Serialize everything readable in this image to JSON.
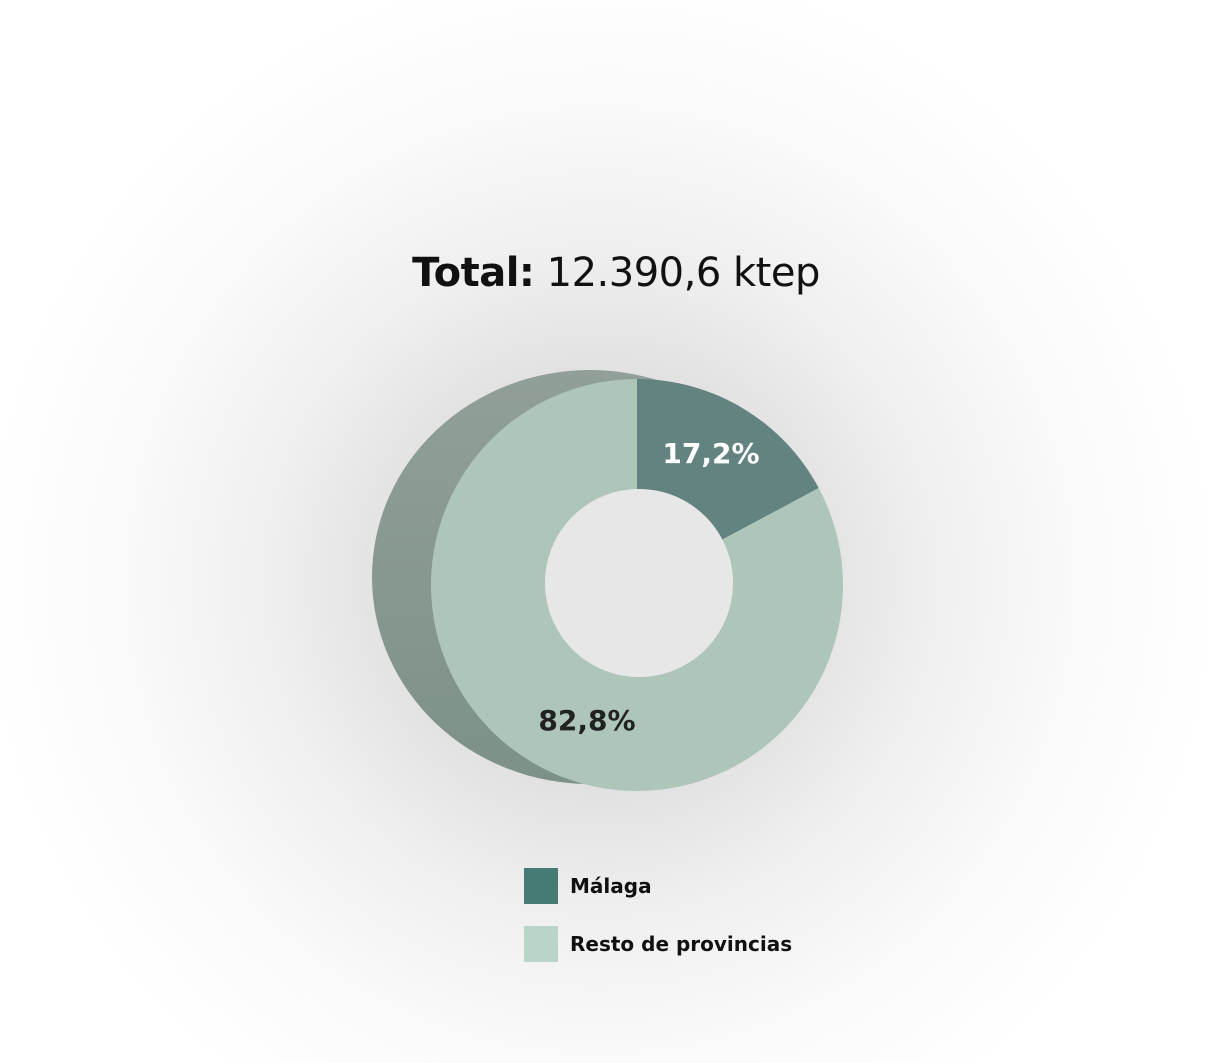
{
  "chart_data": {
    "type": "pie",
    "title_label": "Total:",
    "title_value": "12.390,6 ktep",
    "categories": [
      "Málaga",
      "Resto de provincias"
    ],
    "values": [
      17.2,
      82.8
    ],
    "data_labels": [
      "17,2%",
      "82,8%"
    ],
    "colors": [
      "#628380",
      "#aec6ba"
    ],
    "legend_colors": [
      "#467a75",
      "#b8d5c8"
    ],
    "donut": true,
    "legend": "bottom"
  }
}
